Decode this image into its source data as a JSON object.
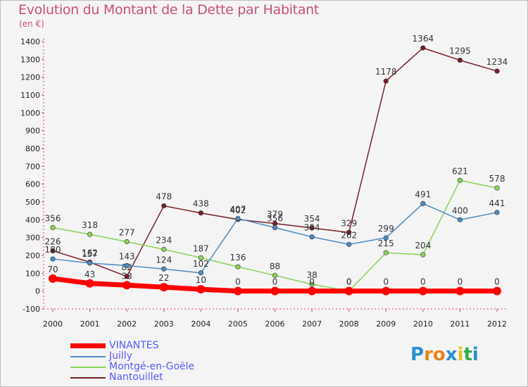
{
  "title": "Evolution du Montant de la Dette par Habitant",
  "unit": "(en €)",
  "logo": {
    "letters": [
      "P",
      "r",
      "o",
      "x",
      "i",
      "t",
      "i"
    ],
    "colors": [
      "#2a8ed6",
      "#e8841e",
      "#e8841e",
      "#2a8ed6",
      "#e8c21e",
      "#2ab04a",
      "#2a8ed6"
    ]
  },
  "chart_data": {
    "type": "line",
    "categories": [
      "2000",
      "2001",
      "2002",
      "2003",
      "2004",
      "2005",
      "2006",
      "2007",
      "2008",
      "2009",
      "2010",
      "2011",
      "2012"
    ],
    "ylim": [
      -100,
      1400
    ],
    "yticks": [
      -100,
      0,
      100,
      200,
      300,
      400,
      500,
      600,
      700,
      800,
      900,
      1000,
      1100,
      1200,
      1300,
      1400
    ],
    "grid": false,
    "legend_position": "bottom-left",
    "series": [
      {
        "name": "VINANTES",
        "color": "#ff0000",
        "width": 7,
        "values": [
          70,
          43,
          33,
          22,
          10,
          0,
          0,
          0,
          0,
          0,
          0,
          0,
          0
        ]
      },
      {
        "name": "Juilly",
        "color": "#4a8cc4",
        "width": 1.5,
        "values": [
          180,
          157,
          143,
          124,
          102,
          407,
          356,
          304,
          262,
          299,
          491,
          400,
          441
        ]
      },
      {
        "name": "Montgé-en-Goële",
        "color": "#8ad45a",
        "width": 1.5,
        "values": [
          356,
          318,
          277,
          234,
          187,
          136,
          88,
          38,
          0,
          215,
          204,
          621,
          578
        ]
      },
      {
        "name": "Nantouillet",
        "color": "#7a1f28",
        "width": 1.5,
        "values": [
          226,
          162,
          82,
          478,
          438,
          402,
          379,
          354,
          329,
          1178,
          1364,
          1295,
          1234
        ]
      }
    ]
  }
}
